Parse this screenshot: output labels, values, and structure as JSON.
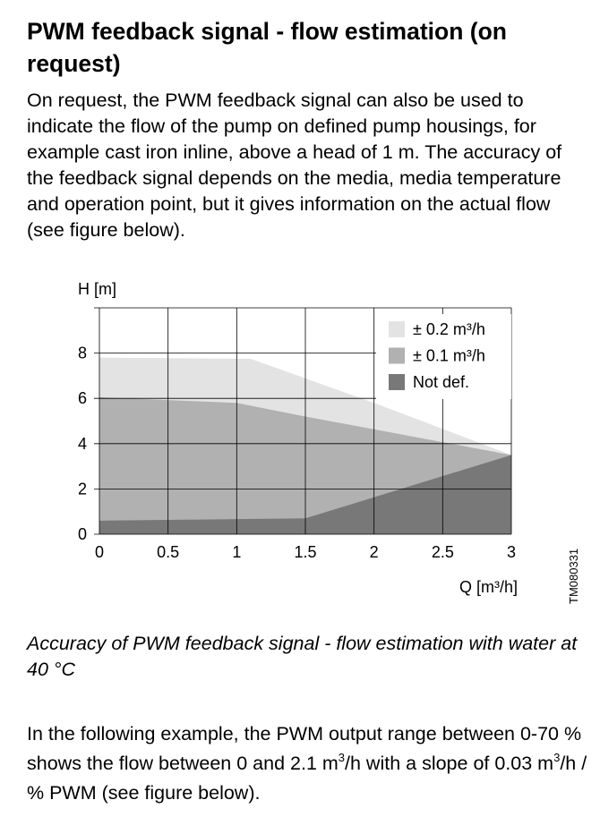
{
  "section": {
    "heading": "PWM feedback signal - flow estimation (on request)",
    "intro": "On request, the PWM feedback signal can also be used to indicate the flow of the pump on defined pump housings, for example cast iron inline, above a head of 1 m. The accuracy of the feedback signal depends on the media, media temperature and operation point, but it gives information on the actual flow (see figure below).",
    "caption": "Accuracy of PWM feedback signal - flow estimation with water at 40 °C",
    "example": {
      "part1": "In the following example, the PWM output range between 0-70 % shows the flow between 0 and 2.1 m",
      "sup1": "3",
      "part2": "/h with a slope of 0.03 m",
      "sup2": "3",
      "part3": "/h / % PWM (see figure below)."
    }
  },
  "chart_data": {
    "type": "area",
    "ylabel": "H [m]",
    "xlabel": "Q [m³/h]",
    "figure_code": "TM080331",
    "xlim": [
      0,
      3
    ],
    "ylim": [
      0,
      10
    ],
    "x_ticks": [
      {
        "value": 0,
        "label": "0"
      },
      {
        "value": 0.5,
        "label": "0.5"
      },
      {
        "value": 1,
        "label": "1"
      },
      {
        "value": 1.5,
        "label": "1.5"
      },
      {
        "value": 2,
        "label": "2"
      },
      {
        "value": 2.5,
        "label": "2.5"
      },
      {
        "value": 3,
        "label": "3"
      }
    ],
    "y_ticks": [
      {
        "value": 0,
        "label": "0"
      },
      {
        "value": 2,
        "label": "2"
      },
      {
        "value": 4,
        "label": "4"
      },
      {
        "value": 6,
        "label": "6"
      },
      {
        "value": 8,
        "label": "8"
      }
    ],
    "grid": true,
    "legend_position": "top-right",
    "series": [
      {
        "name": "± 0.2 m³/h",
        "color": "#e3e3e3",
        "points": [
          [
            0,
            7.8
          ],
          [
            1.1,
            7.75
          ],
          [
            2,
            5.8
          ],
          [
            3,
            3.5
          ]
        ]
      },
      {
        "name": "± 0.1 m³/h",
        "color": "#b1b1b1",
        "points": [
          [
            0,
            6.05
          ],
          [
            1,
            5.8
          ],
          [
            1.5,
            5.2
          ],
          [
            3,
            3.5
          ]
        ]
      },
      {
        "name": "Not def.",
        "color": "#787878",
        "points": [
          [
            0,
            0.6
          ],
          [
            1.5,
            0.7
          ],
          [
            3,
            3.5
          ]
        ]
      }
    ]
  }
}
